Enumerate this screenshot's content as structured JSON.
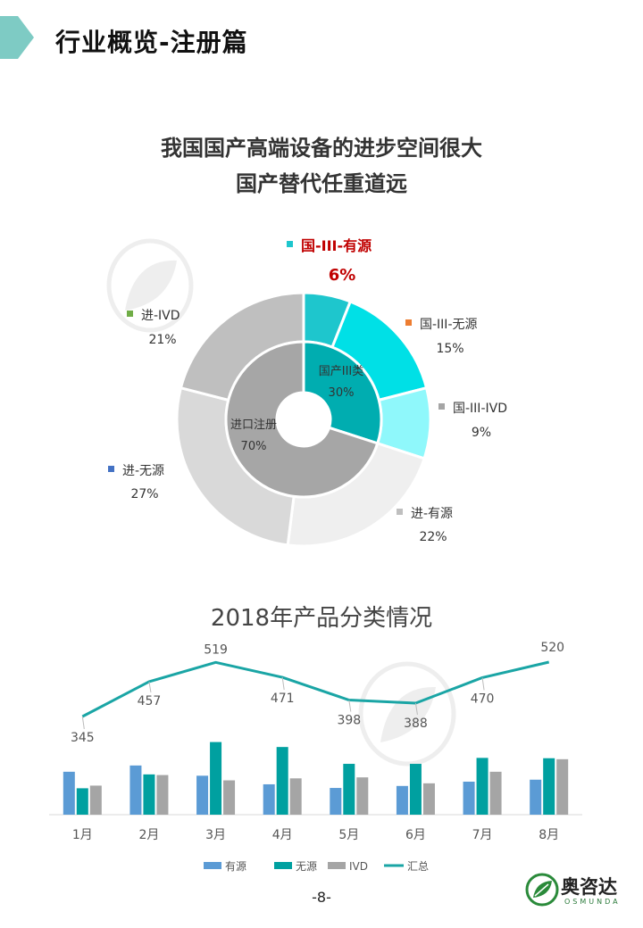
{
  "header": {
    "title": "行业概览-注册篇",
    "accent_color": "#7ecbc4"
  },
  "donut_title_line1": "我国国产高端设备的进步空间很大",
  "donut_title_line2": "国产替代任重道远",
  "bar_chart_title": "2018年产品分类情况",
  "page_number": "-8-",
  "logo": {
    "cn": "奥咨达",
    "en": "OSMUNDA"
  },
  "chart_data": [
    {
      "type": "pie",
      "variant": "nested-donut",
      "inner": [
        {
          "label": "国产III类",
          "value": 30,
          "value_label": "30%",
          "color": "#00adb0"
        },
        {
          "label": "进口注册",
          "value": 70,
          "value_label": "70%",
          "color": "#a6a6a6"
        }
      ],
      "outer": [
        {
          "label": "国-III-有源",
          "value": 6,
          "value_label": "6%",
          "color": "#1ec6cd",
          "legend_color": "#1ec6cd",
          "highlight": true
        },
        {
          "label": "国-III-无源",
          "value": 15,
          "value_label": "15%",
          "color": "#00e0e6",
          "legend_color": "#ed7d31"
        },
        {
          "label": "国-III-IVD",
          "value": 9,
          "value_label": "9%",
          "color": "#8ff8fb",
          "legend_color": "#a5a5a5"
        },
        {
          "label": "进-有源",
          "value": 22,
          "value_label": "22%",
          "color": "#efefef",
          "legend_color": "#bfbfbf"
        },
        {
          "label": "进-无源",
          "value": 27,
          "value_label": "27%",
          "color": "#d9d9d9",
          "legend_color": "#4472c4"
        },
        {
          "label": "进-IVD",
          "value": 21,
          "value_label": "21%",
          "color": "#bfbfbf",
          "legend_color": "#70ad47"
        }
      ]
    },
    {
      "type": "bar",
      "categories": [
        "1月",
        "2月",
        "3月",
        "4月",
        "5月",
        "6月",
        "7月",
        "8月"
      ],
      "series": [
        {
          "name": "有源",
          "type": "bar",
          "color": "#5b9bd5",
          "values": [
            130,
            149,
            118,
            92,
            81,
            87,
            100,
            106
          ]
        },
        {
          "name": "无源",
          "type": "bar",
          "color": "#00a0a0",
          "values": [
            80,
            122,
            220,
            205,
            154,
            154,
            172,
            171
          ]
        },
        {
          "name": "IVD",
          "type": "bar",
          "color": "#a5a5a5",
          "values": [
            88,
            120,
            104,
            110,
            113,
            95,
            130,
            168
          ]
        },
        {
          "name": "汇总",
          "type": "line",
          "color": "#1aa5a5",
          "values": [
            345,
            457,
            519,
            471,
            398,
            388,
            470,
            520
          ]
        }
      ],
      "legend_position": "bottom"
    }
  ]
}
